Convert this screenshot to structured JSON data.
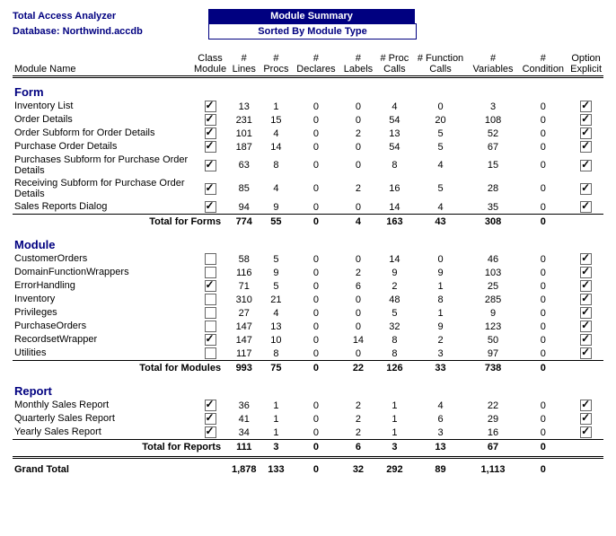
{
  "header": {
    "product": "Total Access Analyzer",
    "db_label": "Database: Northwind.accdb",
    "title": "Module Summary",
    "subtitle": "Sorted By Module Type"
  },
  "columns": {
    "name": "Module Name",
    "class_l1": "Class",
    "class_l2": "Module",
    "lines_l1": "#",
    "lines_l2": "Lines",
    "procs_l1": "#",
    "procs_l2": "Procs",
    "decl_l1": "#",
    "decl_l2": "Declares",
    "labels_l1": "#",
    "labels_l2": "Labels",
    "pcalls_l1": "# Proc",
    "pcalls_l2": "Calls",
    "fcalls_l1": "# Function",
    "fcalls_l2": "Calls",
    "vars_l1": "#",
    "vars_l2": "Variables",
    "cond_l1": "#",
    "cond_l2": "Condition",
    "opt_l1": "Option",
    "opt_l2": "Explicit"
  },
  "groups": [
    {
      "title": "Form",
      "total_label": "Total for Forms",
      "total": {
        "lines": "774",
        "procs": "55",
        "decl": "0",
        "labels": "4",
        "pcalls": "163",
        "fcalls": "43",
        "vars": "308",
        "cond": "0"
      },
      "rows": [
        {
          "name": "Inventory List",
          "class": true,
          "lines": "13",
          "procs": "1",
          "decl": "0",
          "labels": "0",
          "pcalls": "4",
          "fcalls": "0",
          "vars": "3",
          "cond": "0",
          "opt": true
        },
        {
          "name": "Order Details",
          "class": true,
          "lines": "231",
          "procs": "15",
          "decl": "0",
          "labels": "0",
          "pcalls": "54",
          "fcalls": "20",
          "vars": "108",
          "cond": "0",
          "opt": true
        },
        {
          "name": "Order Subform for Order Details",
          "class": true,
          "lines": "101",
          "procs": "4",
          "decl": "0",
          "labels": "2",
          "pcalls": "13",
          "fcalls": "5",
          "vars": "52",
          "cond": "0",
          "opt": true
        },
        {
          "name": "Purchase Order Details",
          "class": true,
          "lines": "187",
          "procs": "14",
          "decl": "0",
          "labels": "0",
          "pcalls": "54",
          "fcalls": "5",
          "vars": "67",
          "cond": "0",
          "opt": true
        },
        {
          "name": "Purchases Subform for Purchase Order Details",
          "class": true,
          "lines": "63",
          "procs": "8",
          "decl": "0",
          "labels": "0",
          "pcalls": "8",
          "fcalls": "4",
          "vars": "15",
          "cond": "0",
          "opt": true
        },
        {
          "name": "Receiving Subform for Purchase Order Details",
          "class": true,
          "lines": "85",
          "procs": "4",
          "decl": "0",
          "labels": "2",
          "pcalls": "16",
          "fcalls": "5",
          "vars": "28",
          "cond": "0",
          "opt": true
        },
        {
          "name": "Sales Reports Dialog",
          "class": true,
          "lines": "94",
          "procs": "9",
          "decl": "0",
          "labels": "0",
          "pcalls": "14",
          "fcalls": "4",
          "vars": "35",
          "cond": "0",
          "opt": true
        }
      ]
    },
    {
      "title": "Module",
      "total_label": "Total for Modules",
      "total": {
        "lines": "993",
        "procs": "75",
        "decl": "0",
        "labels": "22",
        "pcalls": "126",
        "fcalls": "33",
        "vars": "738",
        "cond": "0"
      },
      "rows": [
        {
          "name": "CustomerOrders",
          "class": false,
          "lines": "58",
          "procs": "5",
          "decl": "0",
          "labels": "0",
          "pcalls": "14",
          "fcalls": "0",
          "vars": "46",
          "cond": "0",
          "opt": true
        },
        {
          "name": "DomainFunctionWrappers",
          "class": false,
          "lines": "116",
          "procs": "9",
          "decl": "0",
          "labels": "2",
          "pcalls": "9",
          "fcalls": "9",
          "vars": "103",
          "cond": "0",
          "opt": true
        },
        {
          "name": "ErrorHandling",
          "class": true,
          "lines": "71",
          "procs": "5",
          "decl": "0",
          "labels": "6",
          "pcalls": "2",
          "fcalls": "1",
          "vars": "25",
          "cond": "0",
          "opt": true
        },
        {
          "name": "Inventory",
          "class": false,
          "lines": "310",
          "procs": "21",
          "decl": "0",
          "labels": "0",
          "pcalls": "48",
          "fcalls": "8",
          "vars": "285",
          "cond": "0",
          "opt": true
        },
        {
          "name": "Privileges",
          "class": false,
          "lines": "27",
          "procs": "4",
          "decl": "0",
          "labels": "0",
          "pcalls": "5",
          "fcalls": "1",
          "vars": "9",
          "cond": "0",
          "opt": true
        },
        {
          "name": "PurchaseOrders",
          "class": false,
          "lines": "147",
          "procs": "13",
          "decl": "0",
          "labels": "0",
          "pcalls": "32",
          "fcalls": "9",
          "vars": "123",
          "cond": "0",
          "opt": true
        },
        {
          "name": "RecordsetWrapper",
          "class": true,
          "lines": "147",
          "procs": "10",
          "decl": "0",
          "labels": "14",
          "pcalls": "8",
          "fcalls": "2",
          "vars": "50",
          "cond": "0",
          "opt": true
        },
        {
          "name": "Utilities",
          "class": false,
          "lines": "117",
          "procs": "8",
          "decl": "0",
          "labels": "0",
          "pcalls": "8",
          "fcalls": "3",
          "vars": "97",
          "cond": "0",
          "opt": true
        }
      ]
    },
    {
      "title": "Report",
      "total_label": "Total for Reports",
      "total": {
        "lines": "111",
        "procs": "3",
        "decl": "0",
        "labels": "6",
        "pcalls": "3",
        "fcalls": "13",
        "vars": "67",
        "cond": "0"
      },
      "rows": [
        {
          "name": "Monthly Sales Report",
          "class": true,
          "lines": "36",
          "procs": "1",
          "decl": "0",
          "labels": "2",
          "pcalls": "1",
          "fcalls": "4",
          "vars": "22",
          "cond": "0",
          "opt": true
        },
        {
          "name": "Quarterly Sales Report",
          "class": true,
          "lines": "41",
          "procs": "1",
          "decl": "0",
          "labels": "2",
          "pcalls": "1",
          "fcalls": "6",
          "vars": "29",
          "cond": "0",
          "opt": true
        },
        {
          "name": "Yearly Sales Report",
          "class": true,
          "lines": "34",
          "procs": "1",
          "decl": "0",
          "labels": "2",
          "pcalls": "1",
          "fcalls": "3",
          "vars": "16",
          "cond": "0",
          "opt": true
        }
      ]
    }
  ],
  "grand": {
    "label": "Grand Total",
    "lines": "1,878",
    "procs": "133",
    "decl": "0",
    "labels": "32",
    "pcalls": "292",
    "fcalls": "89",
    "vars": "1,113",
    "cond": "0"
  }
}
